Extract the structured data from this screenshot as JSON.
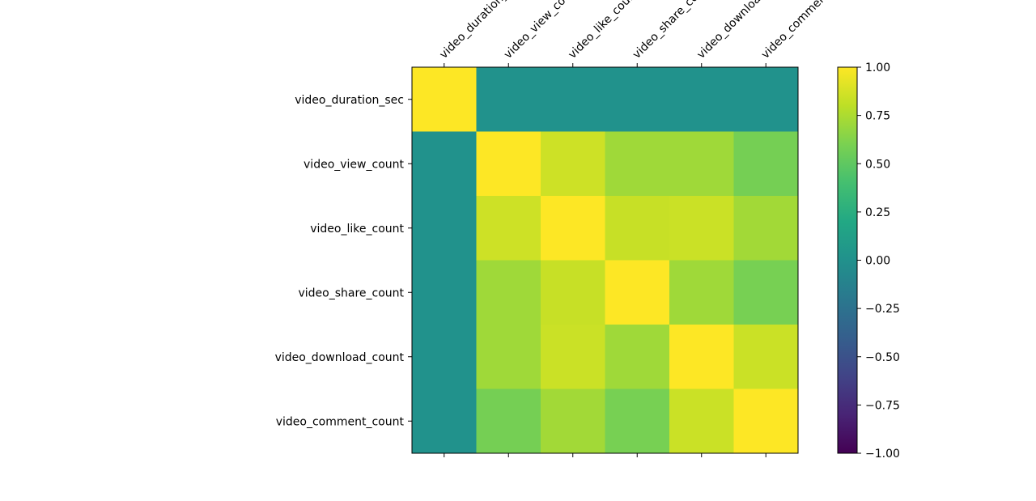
{
  "chart_data": {
    "type": "heatmap",
    "title": "",
    "xlabel": "",
    "ylabel": "",
    "x_labels": [
      "video_duration_sec",
      "video_view_count",
      "video_like_count",
      "video_share_count",
      "video_download_count",
      "video_comment_count"
    ],
    "y_labels": [
      "video_duration_sec",
      "video_view_count",
      "video_like_count",
      "video_share_count",
      "video_download_count",
      "video_comment_count"
    ],
    "values": [
      [
        1.0,
        0.01,
        0.01,
        0.01,
        0.01,
        0.01
      ],
      [
        0.01,
        1.0,
        0.85,
        0.71,
        0.71,
        0.58
      ],
      [
        0.01,
        0.85,
        1.0,
        0.83,
        0.84,
        0.72
      ],
      [
        0.01,
        0.71,
        0.83,
        1.0,
        0.71,
        0.59
      ],
      [
        0.01,
        0.71,
        0.84,
        0.71,
        1.0,
        0.84
      ],
      [
        0.01,
        0.58,
        0.72,
        0.59,
        0.84,
        1.0
      ]
    ],
    "colorbar": {
      "min": -1.0,
      "max": 1.0,
      "ticks": [
        -1.0,
        -0.75,
        -0.5,
        -0.25,
        0.0,
        0.25,
        0.5,
        0.75,
        1.0
      ],
      "tick_labels": [
        "−1.00",
        "−0.75",
        "−0.50",
        "−0.25",
        "0.00",
        "0.25",
        "0.50",
        "0.75",
        "1.00"
      ]
    },
    "colormap": "viridis",
    "x_label_rotation": "45°, top",
    "grid": false
  }
}
